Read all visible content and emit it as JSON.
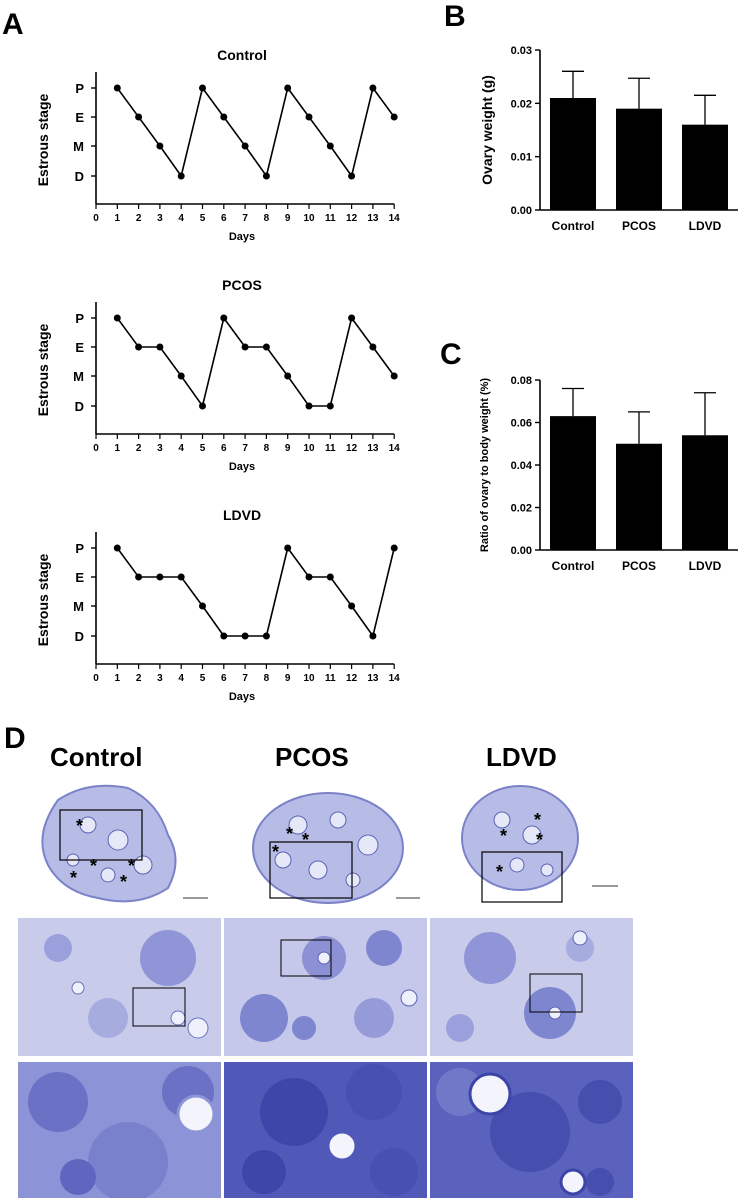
{
  "panel_letters": [
    "A",
    "B",
    "C",
    "D"
  ],
  "panel_a": {
    "x_ticks": [
      "0",
      "1",
      "2",
      "3",
      "4",
      "5",
      "6",
      "7",
      "8",
      "9",
      "10",
      "11",
      "12",
      "13",
      "14"
    ],
    "y_ticks": [
      "P",
      "E",
      "M",
      "D"
    ]
  },
  "chart_data": [
    {
      "type": "line",
      "title": "Control",
      "xlabel": "Days",
      "ylabel": "Estrous stage",
      "x_range": [
        0,
        14
      ],
      "y_categories": [
        "D",
        "M",
        "E",
        "P"
      ],
      "x": [
        1,
        2,
        3,
        4,
        5,
        6,
        7,
        8,
        9,
        10,
        11,
        12,
        13,
        14
      ],
      "y": [
        "P",
        "E",
        "M",
        "D",
        "P",
        "E",
        "M",
        "D",
        "P",
        "E",
        "M",
        "D",
        "P",
        "E"
      ]
    },
    {
      "type": "line",
      "title": "PCOS",
      "xlabel": "Days",
      "ylabel": "Estrous stage",
      "x_range": [
        0,
        14
      ],
      "y_categories": [
        "D",
        "M",
        "E",
        "P"
      ],
      "x": [
        1,
        2,
        3,
        4,
        5,
        6,
        7,
        8,
        9,
        10,
        11,
        12,
        13,
        14
      ],
      "y": [
        "P",
        "E",
        "E",
        "M",
        "D",
        "P",
        "E",
        "E",
        "M",
        "D",
        "D",
        "P",
        "E",
        "M"
      ]
    },
    {
      "type": "line",
      "title": "LDVD",
      "xlabel": "Days",
      "ylabel": "Estrous stage",
      "x_range": [
        0,
        14
      ],
      "y_categories": [
        "D",
        "M",
        "E",
        "P"
      ],
      "x": [
        1,
        2,
        3,
        4,
        5,
        6,
        7,
        8,
        9,
        10,
        11,
        12,
        13,
        14
      ],
      "y": [
        "P",
        "E",
        "E",
        "E",
        "M",
        "D",
        "D",
        "D",
        "P",
        "E",
        "E",
        "M",
        "D",
        "P"
      ]
    },
    {
      "type": "bar",
      "title": "",
      "ylabel": "Ovary weight (g)",
      "categories": [
        "Control",
        "PCOS",
        "LDVD"
      ],
      "values": [
        0.021,
        0.019,
        0.016
      ],
      "error": [
        0.005,
        0.0057,
        0.0055
      ],
      "ylim": [
        0,
        0.03
      ],
      "y_ticks": [
        "0.00",
        "0.01",
        "0.02",
        "0.03"
      ]
    },
    {
      "type": "bar",
      "title": "",
      "ylabel": "Ratio of ovary to body weight (%)",
      "categories": [
        "Control",
        "PCOS",
        "LDVD"
      ],
      "values": [
        0.063,
        0.05,
        0.054
      ],
      "error": [
        0.013,
        0.015,
        0.02
      ],
      "ylim": [
        0,
        0.08
      ],
      "y_ticks": [
        "0.00",
        "0.02",
        "0.04",
        "0.06",
        "0.08"
      ]
    }
  ],
  "panel_d": {
    "groups": [
      "Control",
      "PCOS",
      "LDVD"
    ],
    "colors": {
      "stain_dark": "#3c44a8",
      "stain_light": "#b7bce6",
      "background": "#ffffff"
    }
  }
}
